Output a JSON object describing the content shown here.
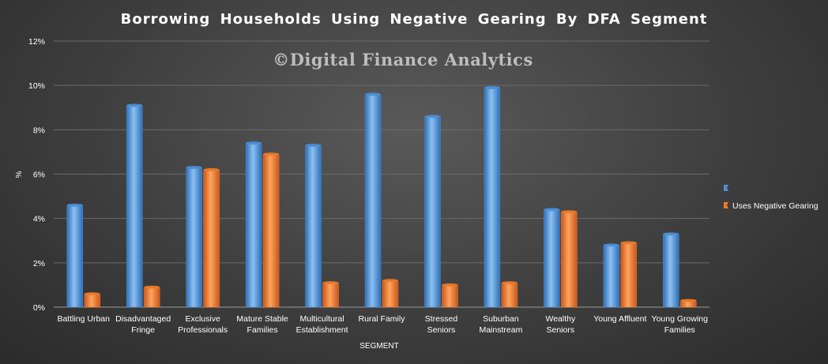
{
  "chart_data": {
    "type": "bar",
    "title": "Borrowing  Households  Using  Negative  Gearing  By DFA Segment",
    "watermark": "©Digital Finance Analytics",
    "xlabel": "SEGMENT",
    "ylabel": "%",
    "ylim": [
      0,
      12
    ],
    "yticks": [
      "0%",
      "2%",
      "4%",
      "6%",
      "8%",
      "10%",
      "12%"
    ],
    "ytick_values": [
      0,
      2,
      4,
      6,
      8,
      10,
      12
    ],
    "grid": true,
    "legend_position": "right",
    "categories": [
      [
        "Battling Urban"
      ],
      [
        "Disadvantaged",
        "Fringe"
      ],
      [
        "Exclusive",
        "Professionals"
      ],
      [
        "Mature Stable",
        "Families"
      ],
      [
        "Multicultural",
        "Establishment"
      ],
      [
        "Rural Family"
      ],
      [
        "Stressed",
        "Seniors"
      ],
      [
        "Suburban",
        "Mainstream"
      ],
      [
        "Wealthy",
        "Seniors"
      ],
      [
        "Young Affluent"
      ],
      [
        "Young Growing",
        "Families"
      ]
    ],
    "series": [
      {
        "name": "",
        "color": "#4a8fd8",
        "values": [
          4.6,
          9.1,
          6.3,
          7.4,
          7.3,
          9.6,
          8.6,
          9.9,
          4.4,
          2.8,
          3.3
        ]
      },
      {
        "name": "Uses Negative Gearing",
        "color": "#f07a2a",
        "values": [
          0.6,
          0.9,
          6.2,
          6.9,
          1.1,
          1.2,
          1.0,
          1.1,
          4.3,
          2.9,
          0.3
        ]
      }
    ]
  }
}
